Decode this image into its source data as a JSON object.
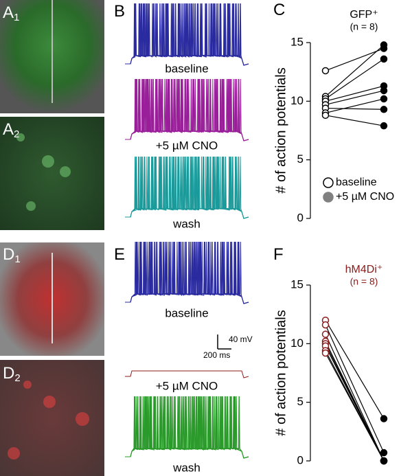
{
  "panels": [
    {
      "letter": "A",
      "sub": "1"
    },
    {
      "letter": "A",
      "sub": "2"
    },
    {
      "letter": "B"
    },
    {
      "letter": "C"
    },
    {
      "letter": "D",
      "sub": "1"
    },
    {
      "letter": "D",
      "sub": "2"
    },
    {
      "letter": "E"
    },
    {
      "letter": "F"
    }
  ],
  "traces": {
    "B": [
      "baseline",
      "+5 µM CNO",
      "wash"
    ],
    "E": [
      "baseline",
      "+5 µM CNO",
      "wash"
    ]
  },
  "scale_bar": {
    "voltage": "40 mV",
    "time": "200 ms"
  },
  "chart_data": [
    {
      "type": "paired",
      "title": "GFP⁺",
      "subtitle": "(n = 8)",
      "title_color": "#000000",
      "y_label": "# of action potentials",
      "ylim": [
        0,
        15
      ],
      "yticks": [
        0,
        5,
        10,
        15
      ],
      "legend": "lower left",
      "series": [
        {
          "name": "baseline",
          "color": "#000000",
          "fill": "#ffffff",
          "values": [
            12.6,
            10.4,
            10.2,
            10.0,
            9.7,
            9.4,
            9.0,
            8.8
          ]
        },
        {
          "name": "+5 µM CNO",
          "color": "#000000",
          "fill": "#000000",
          "values": [
            14.5,
            14.8,
            13.6,
            11.3,
            10.9,
            9.3,
            10.2,
            7.9
          ]
        }
      ]
    },
    {
      "type": "paired",
      "title": "hM4Di⁺",
      "subtitle": "(n = 8)",
      "title_color": "#8b1a1a",
      "y_label": "# of action potentials",
      "ylim": [
        0,
        15
      ],
      "yticks": [
        0,
        5,
        10,
        15
      ],
      "series": [
        {
          "color": "#8b1a1a",
          "fill": "#ffffff",
          "values": [
            12.0,
            11.6,
            10.8,
            10.2,
            10.0,
            9.8,
            9.4,
            9.2
          ]
        },
        {
          "color": "#000000",
          "fill": "#000000",
          "values": [
            3.6,
            0.7,
            0,
            0,
            0,
            0,
            0,
            0
          ]
        }
      ]
    }
  ]
}
